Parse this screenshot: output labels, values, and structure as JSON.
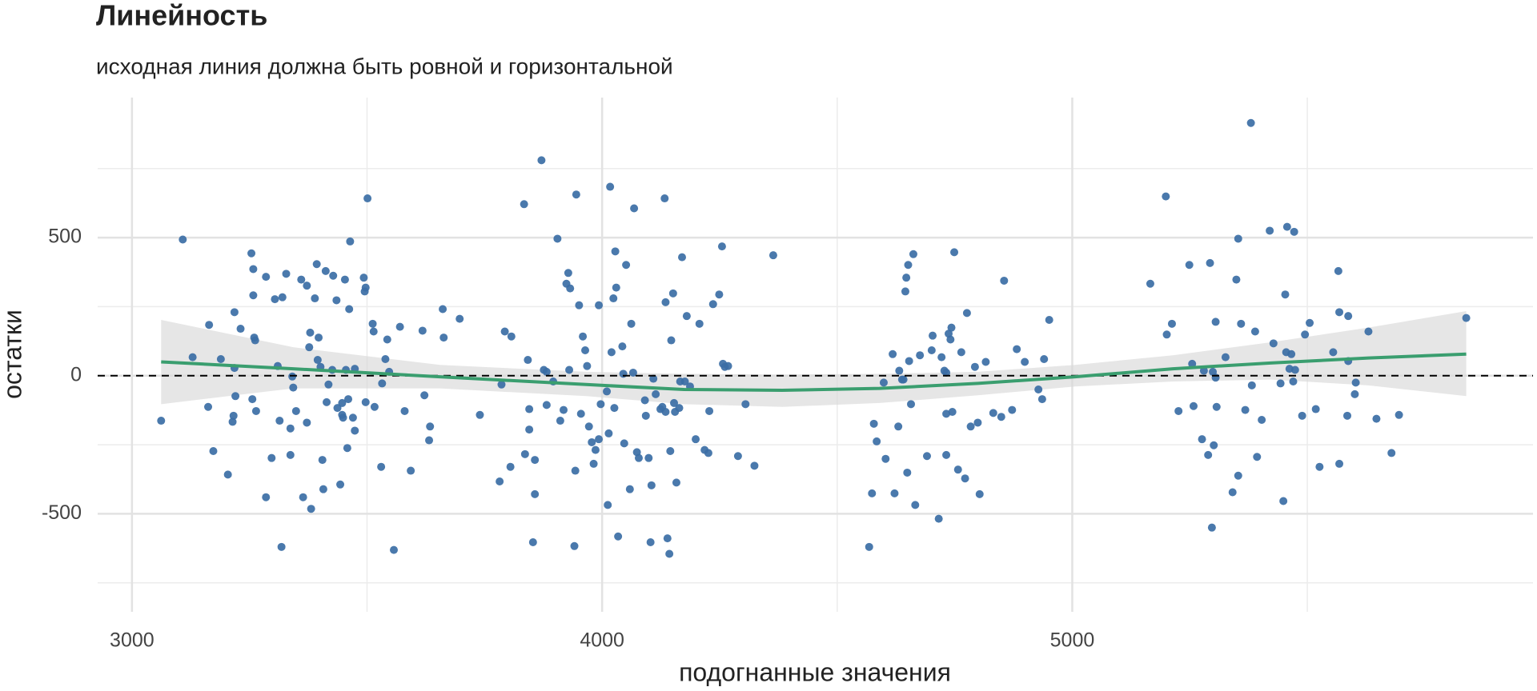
{
  "chart_data": {
    "type": "scatter",
    "title": "Линейность",
    "subtitle": "исходная линия должна быть ровной и горизонтальной",
    "x_label": "подогнанные значения",
    "y_label": "остатки",
    "xlim": [
      2927,
      5980
    ],
    "ylim": [
      -855,
      1007
    ],
    "xticks": [
      3000,
      4000,
      5000
    ],
    "yticks": [
      -500,
      0,
      500
    ],
    "xminor": [
      3500,
      4500,
      5500
    ],
    "yminor": [
      -750,
      -250,
      250,
      750
    ],
    "grid": true,
    "hline": 0,
    "color": "#3b6ea5",
    "x": [
      3062,
      3108,
      3129,
      3162,
      3164,
      3173,
      3189,
      3204,
      3214,
      3216,
      3218,
      3218,
      3220,
      3231,
      3254,
      3256,
      3258,
      3258,
      3260,
      3262,
      3264,
      3285,
      3285,
      3297,
      3304,
      3310,
      3314,
      3318,
      3320,
      3328,
      3337,
      3337,
      3341,
      3343,
      3349,
      3360,
      3364,
      3372,
      3372,
      3377,
      3379,
      3381,
      3389,
      3393,
      3395,
      3397,
      3401,
      3405,
      3407,
      3412,
      3414,
      3418,
      3426,
      3428,
      3435,
      3437,
      3443,
      3447,
      3447,
      3449,
      3453,
      3455,
      3458,
      3460,
      3462,
      3464,
      3470,
      3474,
      3474,
      3493,
      3495,
      3497,
      3497,
      3501,
      3512,
      3514,
      3516,
      3530,
      3532,
      3539,
      3543,
      3547,
      3557,
      3570,
      3580,
      3593,
      3618,
      3622,
      3632,
      3634,
      3661,
      3663,
      3697,
      3740,
      3782,
      3786,
      3793,
      3805,
      3807,
      3834,
      3836,
      3842,
      3845,
      3845,
      3853,
      3857,
      3857,
      3871,
      3876,
      3882,
      3882,
      3896,
      3905,
      3911,
      3918,
      3924,
      3928,
      3930,
      3932,
      3941,
      3943,
      3945,
      3951,
      3955,
      3959,
      3964,
      3968,
      3972,
      3978,
      3982,
      3986,
      3993,
      3993,
      3997,
      4010,
      4012,
      4014,
      4017,
      4020,
      4024,
      4026,
      4028,
      4030,
      4034,
      4043,
      4045,
      4047,
      4051,
      4059,
      4062,
      4066,
      4068,
      4074,
      4078,
      4091,
      4093,
      4099,
      4103,
      4105,
      4109,
      4114,
      4124,
      4128,
      4133,
      4135,
      4135,
      4139,
      4143,
      4145,
      4147,
      4151,
      4153,
      4155,
      4158,
      4164,
      4166,
      4170,
      4176,
      4180,
      4187,
      4199,
      4207,
      4218,
      4226,
      4228,
      4236,
      4249,
      4255,
      4257,
      4261,
      4268,
      4289,
      4305,
      4324,
      4364,
      4568,
      4574,
      4578,
      4584,
      4599,
      4603,
      4618,
      4622,
      4630,
      4632,
      4638,
      4641,
      4645,
      4647,
      4649,
      4651,
      4653,
      4657,
      4662,
      4666,
      4676,
      4691,
      4701,
      4703,
      4716,
      4722,
      4728,
      4732,
      4732,
      4732,
      4737,
      4741,
      4743,
      4745,
      4749,
      4757,
      4764,
      4772,
      4776,
      4784,
      4793,
      4799,
      4803,
      4816,
      4832,
      4849,
      4855,
      4872,
      4882,
      4899,
      4928,
      4936,
      4940,
      4951,
      5166,
      5199,
      5201,
      5212,
      5226,
      5249,
      5255,
      5258,
      5276,
      5280,
      5289,
      5293,
      5299,
      5301,
      5305,
      5305,
      5307,
      5297,
      5326,
      5341,
      5349,
      5353,
      5353,
      5359,
      5368,
      5380,
      5382,
      5389,
      5393,
      5403,
      5420,
      5428,
      5443,
      5449,
      5453,
      5455,
      5457,
      5462,
      5466,
      5470,
      5472,
      5474,
      5489,
      5495,
      5505,
      5518,
      5526,
      5555,
      5566,
      5568,
      5568,
      5587,
      5587,
      5585,
      5601,
      5603,
      5630,
      5647,
      5679,
      5695,
      5838
    ],
    "values": [
      -163,
      493,
      67,
      -113,
      184,
      -273,
      60,
      -358,
      -167,
      -145,
      230,
      28,
      -74,
      170,
      443,
      -85,
      386,
      291,
      138,
      128,
      -128,
      358,
      -440,
      -298,
      277,
      35,
      -163,
      -620,
      284,
      369,
      -191,
      -287,
      -3,
      -43,
      -128,
      348,
      -440,
      326,
      -170,
      103,
      156,
      -482,
      280,
      404,
      57,
      138,
      32,
      -305,
      -411,
      379,
      -96,
      -32,
      21,
      362,
      273,
      -117,
      -394,
      -99,
      -142,
      -152,
      348,
      21,
      -262,
      -85,
      241,
      486,
      -152,
      25,
      -199,
      355,
      305,
      319,
      -96,
      642,
      188,
      160,
      -113,
      -330,
      -28,
      60,
      131,
      14,
      -631,
      177,
      -128,
      -344,
      163,
      -71,
      -234,
      -184,
      241,
      138,
      206,
      -142,
      -383,
      -32,
      160,
      -330,
      142,
      621,
      -284,
      57,
      -121,
      -195,
      -603,
      -429,
      -305,
      780,
      21,
      14,
      -106,
      -21,
      496,
      -163,
      -124,
      333,
      372,
      21,
      316,
      -617,
      -344,
      656,
      255,
      -138,
      142,
      92,
      35,
      -184,
      -241,
      -319,
      -269,
      255,
      -230,
      -103,
      -57,
      -468,
      -209,
      684,
      85,
      280,
      -117,
      450,
      319,
      -582,
      106,
      7,
      -245,
      401,
      -411,
      188,
      11,
      606,
      -277,
      -298,
      -89,
      -145,
      -298,
      -603,
      -397,
      -11,
      -67,
      -121,
      -113,
      642,
      266,
      -131,
      -589,
      -645,
      -273,
      128,
      298,
      -99,
      -131,
      -387,
      -117,
      -21,
      429,
      -21,
      216,
      -39,
      -230,
      188,
      -269,
      -280,
      -128,
      259,
      294,
      468,
      43,
      32,
      35,
      -291,
      -103,
      -326,
      436,
      -620,
      -426,
      -174,
      -238,
      -25,
      -301,
      78,
      -426,
      -184,
      18,
      -14,
      -14,
      305,
      355,
      -351,
      401,
      53,
      -103,
      440,
      -468,
      74,
      -291,
      92,
      145,
      -518,
      67,
      18,
      11,
      -138,
      -287,
      152,
      131,
      174,
      -131,
      447,
      -340,
      85,
      -372,
      227,
      -184,
      32,
      -170,
      -429,
      50,
      -135,
      -149,
      344,
      -124,
      96,
      50,
      -50,
      -85,
      60,
      202,
      333,
      649,
      149,
      188,
      -128,
      401,
      43,
      -110,
      -230,
      18,
      -287,
      408,
      14,
      -252,
      -7,
      195,
      -113,
      -550,
      67,
      -422,
      348,
      -362,
      496,
      188,
      -124,
      915,
      -35,
      160,
      -294,
      -160,
      525,
      117,
      -28,
      -454,
      294,
      85,
      539,
      25,
      78,
      -21,
      521,
      21,
      -145,
      149,
      191,
      -121,
      -330,
      85,
      379,
      230,
      -319,
      216,
      53,
      -145,
      -67,
      -25,
      160,
      -156,
      -280,
      -142,
      209
    ],
    "smooth": {
      "color": "#3a9e6f",
      "x": [
        3062,
        3343,
        3655,
        3966,
        4174,
        4383,
        4590,
        4799,
        5006,
        5214,
        5422,
        5630,
        5838
      ],
      "values": [
        50,
        25,
        -4,
        -32,
        -50,
        -53,
        -46,
        -28,
        -4,
        25,
        46,
        64,
        78
      ],
      "upper": [
        202,
        103,
        39,
        14,
        7,
        4,
        7,
        14,
        39,
        74,
        121,
        174,
        234
      ],
      "lower": [
        -103,
        -46,
        -46,
        -74,
        -103,
        -113,
        -99,
        -71,
        -39,
        -21,
        -14,
        -35,
        -74
      ]
    }
  }
}
